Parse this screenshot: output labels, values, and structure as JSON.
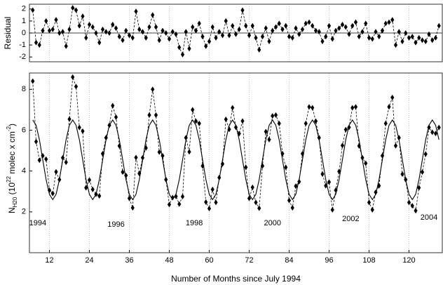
{
  "chart_data": [
    {
      "type": "line",
      "ylabel": "Residual",
      "ylim": [
        -2.4,
        2.4
      ],
      "yticks": [
        -2,
        -1,
        0,
        1,
        2
      ],
      "xlim": [
        6,
        130
      ],
      "xticks": [
        12,
        24,
        36,
        48,
        60,
        72,
        84,
        96,
        108,
        120
      ],
      "grid": true,
      "zero_line": true,
      "x": [
        7,
        8,
        9,
        10,
        11,
        12,
        13,
        14,
        15,
        16,
        17,
        18,
        19,
        20,
        21,
        22,
        23,
        24,
        25,
        26,
        27,
        28,
        29,
        30,
        31,
        32,
        33,
        34,
        35,
        36,
        37,
        38,
        39,
        40,
        41,
        42,
        43,
        44,
        45,
        46,
        47,
        48,
        49,
        50,
        51,
        52,
        53,
        54,
        55,
        56,
        57,
        58,
        59,
        60,
        61,
        62,
        63,
        64,
        65,
        66,
        67,
        68,
        69,
        70,
        71,
        72,
        73,
        74,
        75,
        76,
        77,
        78,
        79,
        80,
        81,
        82,
        83,
        84,
        85,
        86,
        87,
        88,
        89,
        90,
        91,
        92,
        93,
        94,
        95,
        96,
        97,
        98,
        99,
        100,
        101,
        102,
        103,
        104,
        105,
        106,
        107,
        108,
        109,
        110,
        111,
        112,
        113,
        114,
        115,
        116,
        117,
        118,
        119,
        120,
        121,
        122,
        123,
        124,
        125,
        126,
        127,
        128,
        129
      ],
      "series": [
        {
          "color": "#000000",
          "values": [
            1.9,
            -0.8,
            -1.0,
            0.2,
            1.0,
            0.2,
            0.3,
            1.1,
            0.0,
            0.1,
            -1.1,
            0.3,
            2.1,
            1.9,
            0.6,
            1.4,
            -0.4,
            0.7,
            0.5,
            0.0,
            -0.8,
            0.3,
            0.1,
            0.0,
            0.7,
            0.4,
            -0.3,
            -0.6,
            0.2,
            -0.2,
            -0.4,
            1.8,
            0.3,
            0.1,
            -0.4,
            0.5,
            1.5,
            0.5,
            -0.6,
            0.2,
            0.0,
            -0.5,
            0.1,
            -0.1,
            -1.2,
            -1.8,
            0.1,
            -1.3,
            0.5,
            0.2,
            0.8,
            -0.3,
            -1.1,
            -0.7,
            0.5,
            -0.4,
            0.1,
            -0.2,
            1.0,
            -0.2,
            0.6,
            -0.1,
            0.3,
            1.9,
            0.6,
            -0.2,
            0.6,
            -0.4,
            -1.4,
            -0.3,
            0.4,
            -0.7,
            0.2,
            0.5,
            0.8,
            0.3,
            0.6,
            -0.3,
            -0.4,
            0.4,
            -0.1,
            0.3,
            0.8,
            0.9,
            0.6,
            0.2,
            0.1,
            -0.7,
            -0.3,
            0.6,
            -0.5,
            0.2,
            0.4,
            0.7,
            0.5,
            -0.1,
            0.6,
            0.9,
            -0.3,
            0.1,
            0.8,
            -0.4,
            -0.5,
            0.1,
            -0.3,
            0.2,
            0.8,
            0.9,
            1.1,
            -1.0,
            0.1,
            -0.7,
            0.0,
            -0.4,
            -0.3,
            -0.8,
            -0.4,
            -0.6,
            -0.7,
            -0.1,
            -0.6,
            -0.4,
            0.6
          ]
        }
      ]
    },
    {
      "type": "line",
      "xlabel": "Number of Months since July 1994",
      "ylabel": [
        "N",
        "H20",
        " (10",
        "22",
        " molec x cm",
        "-2",
        ")"
      ],
      "ylim": [
        0,
        8.8
      ],
      "yticks": [
        2,
        4,
        6,
        8
      ],
      "xlim": [
        6,
        130
      ],
      "xticks": [
        12,
        24,
        36,
        48,
        60,
        72,
        84,
        96,
        108,
        120
      ],
      "grid": true,
      "annotations": [
        "1994",
        "1996",
        "1998",
        "2000",
        "2002",
        "2004"
      ],
      "x": [
        7,
        8,
        9,
        10,
        11,
        12,
        13,
        14,
        15,
        16,
        17,
        18,
        19,
        20,
        21,
        22,
        23,
        24,
        25,
        26,
        27,
        28,
        29,
        30,
        31,
        32,
        33,
        34,
        35,
        36,
        37,
        38,
        39,
        40,
        41,
        42,
        43,
        44,
        45,
        46,
        47,
        48,
        49,
        50,
        51,
        52,
        53,
        54,
        55,
        56,
        57,
        58,
        59,
        60,
        61,
        62,
        63,
        64,
        65,
        66,
        67,
        68,
        69,
        70,
        71,
        72,
        73,
        74,
        75,
        76,
        77,
        78,
        79,
        80,
        81,
        82,
        83,
        84,
        85,
        86,
        87,
        88,
        89,
        90,
        91,
        92,
        93,
        94,
        95,
        96,
        97,
        98,
        99,
        100,
        101,
        102,
        103,
        104,
        105,
        106,
        107,
        108,
        109,
        110,
        111,
        112,
        113,
        114,
        115,
        116,
        117,
        118,
        119,
        120,
        121,
        122,
        123,
        124,
        125,
        126,
        127,
        128,
        129
      ],
      "series": [
        {
          "color": "#000000",
          "values": [
            8.4,
            5.44,
            4.53,
            4.75,
            4.58,
            3.06,
            2.9,
            3.96,
            3.58,
            4.65,
            4.43,
            6.54,
            8.6,
            8.14,
            6.13,
            5.95,
            3.18,
            3.56,
            3.1,
            2.86,
            2.78,
            4.85,
            5.63,
            6.24,
            7.2,
            6.64,
            5.23,
            3.95,
            3.78,
            2.66,
            2.2,
            4.66,
            3.88,
            4.65,
            5.13,
            6.74,
            8.0,
            6.74,
            4.93,
            4.75,
            3.58,
            2.36,
            2.7,
            2.76,
            2.38,
            2.75,
            5.63,
            4.94,
            7.0,
            6.44,
            6.33,
            4.25,
            2.48,
            2.16,
            3.1,
            2.46,
            3.68,
            4.35,
            6.53,
            6.04,
            7.1,
            6.14,
            5.83,
            6.45,
            4.18,
            2.66,
            3.2,
            2.46,
            2.18,
            4.25,
            5.93,
            5.54,
            6.7,
            6.74,
            6.33,
            4.85,
            4.18,
            2.56,
            2.2,
            3.26,
            3.48,
            4.85,
            6.33,
            7.14,
            7.1,
            6.44,
            5.63,
            3.85,
            3.28,
            3.46,
            2.1,
            3.06,
            3.98,
            5.25,
            6.03,
            6.14,
            7.1,
            7.14,
            5.23,
            4.65,
            4.38,
            2.46,
            2.1,
            2.96,
            3.28,
            4.75,
            6.33,
            7.14,
            7.6,
            5.24,
            5.63,
            3.85,
            3.58,
            2.46,
            2.3,
            2.06,
            3.18,
            3.95,
            4.83,
            6.14,
            5.9,
            5.84,
            6.13
          ]
        },
        {
          "color": "#000000",
          "values": [
            6.5,
            6.24,
            5.53,
            4.55,
            3.58,
            2.86,
            2.6,
            2.86,
            3.58,
            4.55,
            5.53,
            6.24,
            6.5,
            6.24,
            5.53,
            4.55,
            3.58,
            2.86,
            2.6,
            2.86,
            3.58,
            4.55,
            5.53,
            6.24,
            6.5,
            6.24,
            5.53,
            4.55,
            3.58,
            2.86,
            2.6,
            2.86,
            3.58,
            4.55,
            5.53,
            6.24,
            6.5,
            6.24,
            5.53,
            4.55,
            3.58,
            2.86,
            2.6,
            2.86,
            3.58,
            4.55,
            5.53,
            6.24,
            6.5,
            6.24,
            5.53,
            4.55,
            3.58,
            2.86,
            2.6,
            2.86,
            3.58,
            4.55,
            5.53,
            6.24,
            6.5,
            6.24,
            5.53,
            4.55,
            3.58,
            2.86,
            2.6,
            2.86,
            3.58,
            4.55,
            5.53,
            6.24,
            6.5,
            6.24,
            5.53,
            4.55,
            3.58,
            2.86,
            2.6,
            2.86,
            3.58,
            4.55,
            5.53,
            6.24,
            6.5,
            6.24,
            5.53,
            4.55,
            3.58,
            2.86,
            2.6,
            2.86,
            3.58,
            4.55,
            5.53,
            6.24,
            6.5,
            6.24,
            5.53,
            4.55,
            3.58,
            2.86,
            2.6,
            2.86,
            3.58,
            4.55,
            5.53,
            6.24,
            6.5,
            6.24,
            5.53,
            4.55,
            3.58,
            2.86,
            2.6,
            2.86,
            3.58,
            4.55,
            5.53,
            6.24,
            6.5,
            6.24,
            5.53
          ]
        }
      ]
    }
  ]
}
